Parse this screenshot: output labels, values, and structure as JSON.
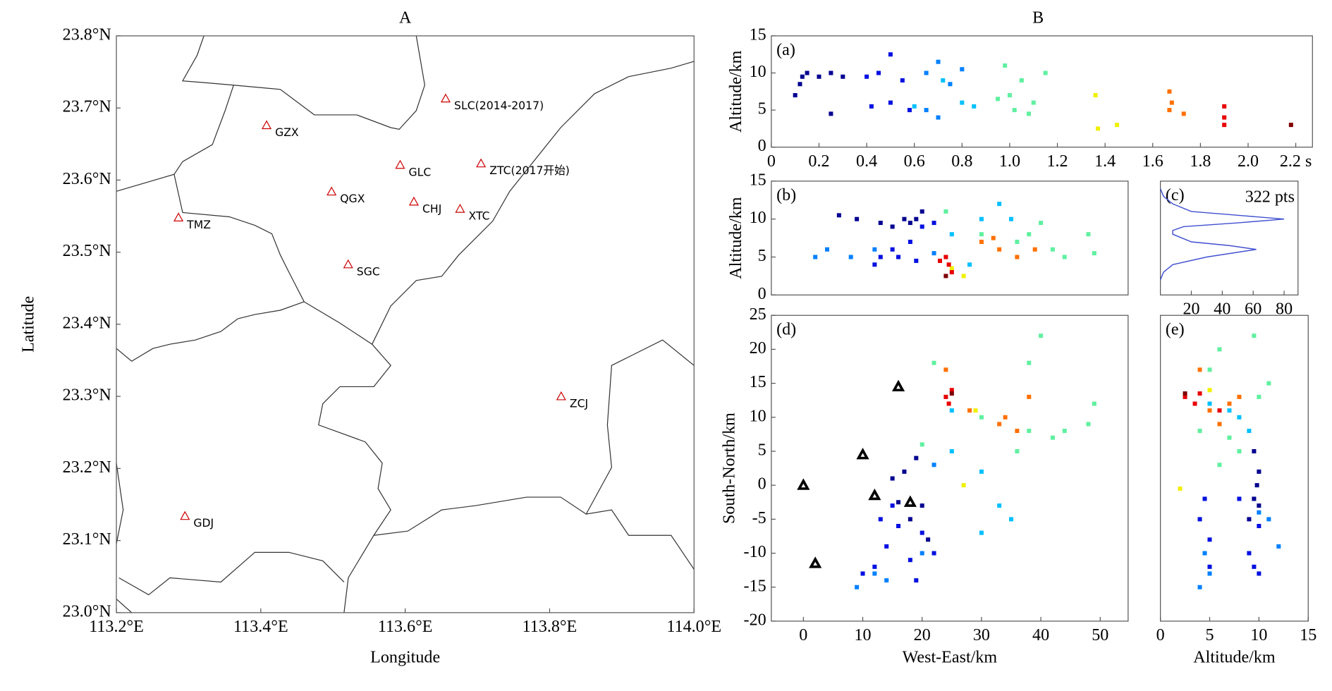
{
  "chart_data": [
    {
      "type": "map",
      "title": "A",
      "xlabel": "Longitude",
      "ylabel": "Latitude",
      "xlim": [
        113.2,
        114.0
      ],
      "ylim": [
        23.0,
        23.8
      ],
      "xticks": [
        {
          "value": 113.2,
          "label": "113.2°E"
        },
        {
          "value": 113.4,
          "label": "113.4°E"
        },
        {
          "value": 113.6,
          "label": "113.6°E"
        },
        {
          "value": 113.8,
          "label": "113.8°E"
        },
        {
          "value": 114.0,
          "label": "114.0°E"
        }
      ],
      "yticks": [
        {
          "value": 23.0,
          "label": "23.0°N"
        },
        {
          "value": 23.1,
          "label": "23.1°N"
        },
        {
          "value": 23.2,
          "label": "23.2°N"
        },
        {
          "value": 23.3,
          "label": "23.3°N"
        },
        {
          "value": 23.4,
          "label": "23.4°N"
        },
        {
          "value": 23.5,
          "label": "23.5°N"
        },
        {
          "value": 23.6,
          "label": "23.6°N"
        },
        {
          "value": 23.7,
          "label": "23.7°N"
        },
        {
          "value": 23.8,
          "label": "23.8°N"
        }
      ],
      "stations": {
        "color": "#cc0000",
        "names": [
          "SLC(2014-2017)",
          "GZX",
          "GLC",
          "ZTC(2017开始)",
          "QGX",
          "TMZ",
          "CHJ",
          "XTC",
          "SGC",
          "ZCJ",
          "GDJ"
        ],
        "x": [
          113.656,
          113.408,
          113.593,
          113.705,
          113.498,
          113.286,
          113.612,
          113.676,
          113.521,
          113.816,
          113.295
        ],
        "y": [
          23.713,
          23.676,
          23.621,
          23.623,
          23.584,
          23.548,
          23.57,
          23.56,
          23.483,
          23.3,
          23.134
        ]
      }
    },
    {
      "type": "scatter",
      "group_title": "B",
      "panel_label": "(a)",
      "ylabel": "Altitude/km",
      "xlim": [
        0,
        2.27
      ],
      "ylim": [
        0,
        15
      ],
      "xticks": [
        0,
        0.2,
        0.4,
        0.6,
        0.8,
        {
          "value": 1,
          "label": "1.0"
        },
        1.2,
        1.4,
        1.6,
        1.8,
        {
          "value": 2,
          "label": "2.0"
        },
        {
          "value": 2.2,
          "label": "2.2 s"
        }
      ],
      "yticks": [
        0,
        5,
        10,
        15
      ],
      "series": [
        {
          "color": "#000090",
          "x": [
            0.1,
            0.12,
            0.13,
            0.15,
            0.2,
            0.25,
            0.3,
            0.25
          ],
          "y": [
            7,
            8.5,
            9.5,
            10,
            9.5,
            10,
            9.5,
            4.5
          ]
        },
        {
          "color": "#0010e0",
          "x": [
            0.4,
            0.45,
            0.5,
            0.55,
            0.42,
            0.5,
            0.58
          ],
          "y": [
            9.5,
            10,
            12.5,
            9,
            5.5,
            6,
            5
          ]
        },
        {
          "color": "#0080ff",
          "x": [
            0.65,
            0.7,
            0.75,
            0.8,
            0.65,
            0.7
          ],
          "y": [
            10,
            11.5,
            8.5,
            10.5,
            5,
            4
          ]
        },
        {
          "color": "#00c0ff",
          "x": [
            0.8,
            0.85,
            0.72,
            0.6
          ],
          "y": [
            6,
            5.5,
            9,
            5.5
          ]
        },
        {
          "color": "#60f0a0",
          "x": [
            0.98,
            1.0,
            1.05,
            1.1,
            1.15,
            1.02,
            1.08,
            0.95
          ],
          "y": [
            11,
            7,
            9,
            6,
            10,
            5,
            4.5,
            6.5
          ]
        },
        {
          "color": "#f0f000",
          "x": [
            1.36,
            1.37,
            1.45
          ],
          "y": [
            7,
            2.5,
            3
          ]
        },
        {
          "color": "#ff7000",
          "x": [
            1.67,
            1.68,
            1.67,
            1.73
          ],
          "y": [
            7.5,
            6,
            5,
            4.5
          ]
        },
        {
          "color": "#e80000",
          "x": [
            1.9,
            1.9,
            1.9
          ],
          "y": [
            5.5,
            4,
            3
          ]
        },
        {
          "color": "#800000",
          "x": [
            2.18
          ],
          "y": [
            3
          ]
        }
      ]
    },
    {
      "type": "scatter",
      "panel_label": "(b)",
      "ylabel": "Altitude/km",
      "xlim": [
        -5.4,
        54.7
      ],
      "ylim": [
        0,
        15
      ],
      "yticks": [
        0,
        5,
        10,
        15
      ],
      "series": [
        {
          "color": "#000090",
          "x": [
            6,
            9,
            13,
            15,
            17,
            18,
            19,
            20
          ],
          "y": [
            10.5,
            10,
            9.5,
            9,
            10,
            9.5,
            10,
            11
          ]
        },
        {
          "color": "#0010e0",
          "x": [
            13,
            15,
            18,
            20,
            22,
            16,
            19,
            12
          ],
          "y": [
            5,
            6,
            7,
            9,
            9.5,
            5,
            4.5,
            4
          ]
        },
        {
          "color": "#0080ff",
          "x": [
            2,
            4,
            8,
            12,
            22
          ],
          "y": [
            5,
            6,
            5,
            6,
            5.5
          ]
        },
        {
          "color": "#00c0ff",
          "x": [
            28,
            30,
            33,
            35,
            25
          ],
          "y": [
            4,
            10,
            12,
            10,
            8
          ]
        },
        {
          "color": "#60f0a0",
          "x": [
            24,
            30,
            36,
            38,
            42,
            44,
            48,
            49,
            40
          ],
          "y": [
            11,
            8,
            7,
            8,
            6,
            5,
            8,
            5.5,
            9.5
          ]
        },
        {
          "color": "#f0f000",
          "x": [
            27,
            25
          ],
          "y": [
            2.5,
            3.5
          ]
        },
        {
          "color": "#ff7000",
          "x": [
            30,
            33,
            36,
            39,
            32
          ],
          "y": [
            7,
            6,
            5,
            6,
            7.5
          ]
        },
        {
          "color": "#e80000",
          "x": [
            24,
            25,
            24.5,
            23
          ],
          "y": [
            5,
            3,
            4,
            4.5
          ]
        },
        {
          "color": "#800000",
          "x": [
            24
          ],
          "y": [
            2.5
          ]
        }
      ]
    },
    {
      "type": "line",
      "panel_label": "(c)",
      "annotation": "322 pts",
      "xlim": [
        0,
        89
      ],
      "ylim": [
        0,
        15
      ],
      "xticks": [
        20,
        40,
        60,
        80
      ],
      "color": "#4050d0",
      "x": [
        0,
        2,
        8,
        20,
        50,
        80,
        50,
        15,
        8,
        8,
        20,
        45,
        62,
        30,
        8,
        2,
        0
      ],
      "y": [
        14,
        13,
        12,
        11,
        10.5,
        10,
        9.5,
        9,
        8.5,
        8,
        7,
        6.5,
        6,
        5,
        4,
        3,
        2
      ]
    },
    {
      "type": "scatter",
      "panel_label": "(d)",
      "xlabel": "West-East/km",
      "ylabel": "South-North/km",
      "xlim": [
        -5.4,
        54.7
      ],
      "ylim": [
        -20,
        25
      ],
      "xticks": [
        0,
        10,
        20,
        30,
        40,
        50
      ],
      "yticks": [
        -20,
        -15,
        -10,
        -5,
        0,
        5,
        10,
        15,
        20,
        25
      ],
      "stations": {
        "color": "#000000",
        "x": [
          0,
          10,
          16,
          12,
          18,
          2
        ],
        "y": [
          0,
          4.5,
          14.5,
          -1.5,
          -2.5,
          -11.5
        ]
      },
      "series": [
        {
          "color": "#000090",
          "x": [
            16,
            17,
            18,
            20,
            21,
            15,
            19
          ],
          "y": [
            -2.5,
            2,
            -5,
            -3,
            -8,
            1,
            4
          ]
        },
        {
          "color": "#0010e0",
          "x": [
            10,
            12,
            14,
            16,
            18,
            20,
            22,
            15,
            13,
            19
          ],
          "y": [
            -13,
            -12,
            -9,
            -6,
            -11,
            -7,
            -10,
            -3,
            -5,
            -14
          ]
        },
        {
          "color": "#0080ff",
          "x": [
            9,
            12,
            14,
            20,
            22
          ],
          "y": [
            -15,
            -13,
            -14,
            -10,
            3
          ]
        },
        {
          "color": "#00c0ff",
          "x": [
            25,
            30,
            33,
            35,
            30,
            25
          ],
          "y": [
            5,
            2,
            -3,
            -5,
            -7,
            11
          ]
        },
        {
          "color": "#60f0a0",
          "x": [
            20,
            22,
            30,
            38,
            40,
            38,
            42,
            48,
            49,
            36,
            44
          ],
          "y": [
            6,
            18,
            10,
            18,
            22,
            8,
            7,
            9,
            12,
            5,
            8
          ]
        },
        {
          "color": "#f0f000",
          "x": [
            27,
            29
          ],
          "y": [
            0,
            11
          ]
        },
        {
          "color": "#ff7000",
          "x": [
            24,
            28,
            33,
            36,
            38,
            34
          ],
          "y": [
            17,
            11,
            9,
            8,
            13,
            10
          ]
        },
        {
          "color": "#e80000",
          "x": [
            24,
            25,
            24.5
          ],
          "y": [
            13,
            14,
            12
          ]
        },
        {
          "color": "#800000",
          "x": [
            25
          ],
          "y": [
            13.5
          ]
        }
      ]
    },
    {
      "type": "scatter",
      "panel_label": "(e)",
      "xlabel": "Altitude/km",
      "xlim": [
        0,
        15
      ],
      "ylim": [
        -20,
        25
      ],
      "xticks": [
        0,
        5,
        10,
        15
      ],
      "series": [
        {
          "color": "#000090",
          "x": [
            9.5,
            10,
            9.5,
            9,
            10,
            9.8
          ],
          "y": [
            5,
            2,
            -2,
            -5,
            -3,
            0
          ]
        },
        {
          "color": "#0010e0",
          "x": [
            4,
            5,
            5,
            9,
            10,
            9.5,
            4.5,
            8,
            10
          ],
          "y": [
            -5,
            -8,
            -12,
            -10,
            -13,
            -12,
            -2,
            -2,
            -6
          ]
        },
        {
          "color": "#0080ff",
          "x": [
            4,
            5,
            4.5,
            10,
            11,
            12
          ],
          "y": [
            -15,
            -13,
            -10,
            -4,
            -5,
            -9
          ]
        },
        {
          "color": "#00c0ff",
          "x": [
            8,
            9,
            7,
            5
          ],
          "y": [
            10,
            8,
            11,
            12
          ]
        },
        {
          "color": "#60f0a0",
          "x": [
            5,
            6,
            9.5,
            11,
            6,
            8,
            10,
            7,
            4
          ],
          "y": [
            17,
            20,
            22,
            15,
            3,
            5,
            13,
            7,
            8
          ]
        },
        {
          "color": "#f0f000",
          "x": [
            2,
            5
          ],
          "y": [
            -0.5,
            14
          ]
        },
        {
          "color": "#ff7000",
          "x": [
            4,
            5,
            6,
            7,
            8
          ],
          "y": [
            17,
            11,
            9,
            12,
            13
          ]
        },
        {
          "color": "#e80000",
          "x": [
            2.5,
            3.5,
            4,
            6
          ],
          "y": [
            13,
            12,
            13.5,
            11
          ]
        },
        {
          "color": "#800000",
          "x": [
            2.5
          ],
          "y": [
            13.5
          ]
        }
      ]
    }
  ]
}
